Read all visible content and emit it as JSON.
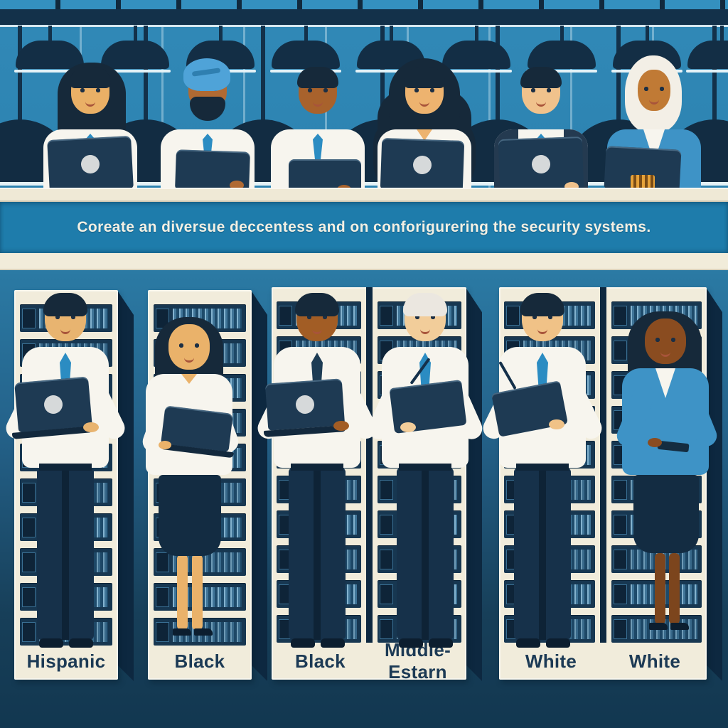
{
  "banner": {
    "caption": "Coreate an diversue deccentess and on conforigurering the security systems."
  },
  "racks": [
    {
      "labels": [
        "Hispanic"
      ]
    },
    {
      "labels": [
        "Black"
      ]
    },
    {
      "labels": [
        "Black",
        "Middle-Estarn"
      ]
    },
    {
      "labels": [
        "White",
        "White"
      ]
    }
  ],
  "colors": {
    "wall_blue": "#2e86b4",
    "banner_blue": "#1e7cab",
    "cream": "#f1ecda",
    "navy": "#16293a",
    "tie_blue": "#2b8cc2",
    "server_screen_blue": "#8fc0dc",
    "bottom_dark": "#123750",
    "turban_blue": "#4fa3d8",
    "blazer_blue": "#3e93c6"
  }
}
